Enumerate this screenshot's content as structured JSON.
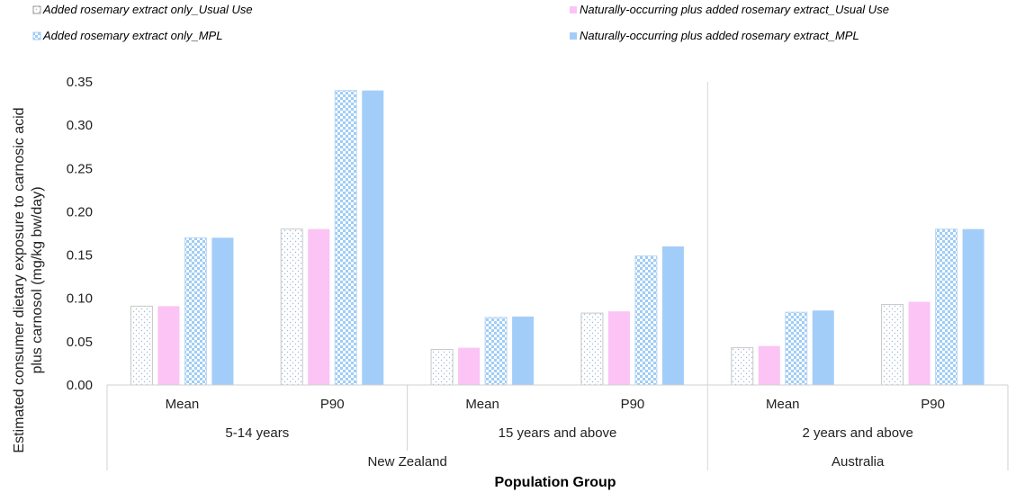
{
  "chart_data": {
    "type": "bar",
    "xlabel": "Population Group",
    "ylabel": "Estimated consumer dietary exposure to carnosic acid plus carnosol (mg/kg bw/day)",
    "ylim": [
      0,
      0.35
    ],
    "yticks": [
      "0.00",
      "0.05",
      "0.10",
      "0.15",
      "0.20",
      "0.25",
      "0.30",
      "0.35"
    ],
    "grid": false,
    "legend_position": "top",
    "categories": [
      "Mean",
      "P90",
      "Mean",
      "P90",
      "Mean",
      "P90"
    ],
    "age_groups": [
      "5-14 years",
      "15 years and above",
      "2 years and above"
    ],
    "countries": [
      "New Zealand",
      "Australia"
    ],
    "series": [
      {
        "name": "Added rosemary extract only_Usual Use",
        "color": "#ffffff",
        "pattern": "dots",
        "values": [
          0.091,
          0.18,
          0.041,
          0.083,
          0.043,
          0.093
        ]
      },
      {
        "name": "Naturally-occurring plus added rosemary extract_Usual Use",
        "color": "#fbc4f4",
        "pattern": "solid",
        "values": [
          0.091,
          0.18,
          0.043,
          0.085,
          0.045,
          0.096
        ]
      },
      {
        "name": "Added rosemary extract only_MPL",
        "color": "#9fcdf5",
        "pattern": "checker",
        "values": [
          0.17,
          0.34,
          0.078,
          0.149,
          0.084,
          0.18
        ]
      },
      {
        "name": "Naturally-occurring plus added rosemary extract_MPL",
        "color": "#a3cdf9",
        "pattern": "solid",
        "values": [
          0.17,
          0.34,
          0.079,
          0.16,
          0.086,
          0.18
        ]
      }
    ]
  }
}
